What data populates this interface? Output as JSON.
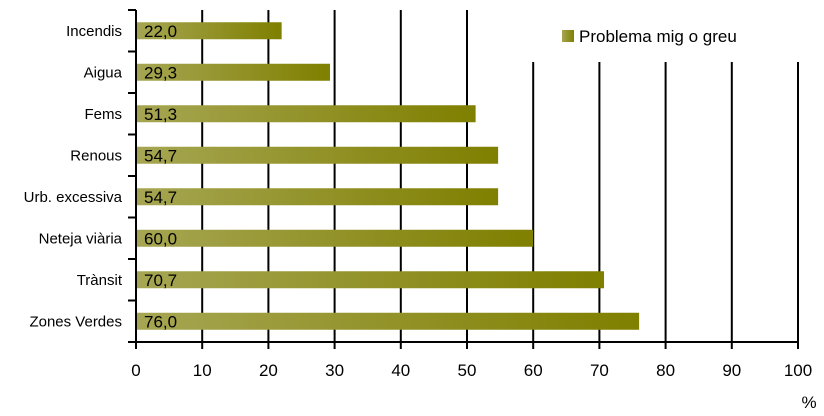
{
  "chart_data": {
    "type": "bar",
    "orientation": "horizontal",
    "categories": [
      "Incendis",
      "Aigua",
      "Fems",
      "Renous",
      "Urb. excessiva",
      "Neteja viària",
      "Trànsit",
      "Zones Verdes"
    ],
    "series": [
      {
        "name": "Problema mig o greu",
        "values": [
          22.0,
          29.3,
          51.3,
          54.7,
          54.7,
          60.0,
          70.7,
          76.0
        ],
        "value_labels": [
          "22,0",
          "29,3",
          "51,3",
          "54,7",
          "54,7",
          "60,0",
          "70,7",
          "76,0"
        ]
      }
    ],
    "xlim": [
      0,
      100
    ],
    "x_ticks": [
      0,
      10,
      20,
      30,
      40,
      50,
      60,
      70,
      80,
      90,
      100
    ],
    "x_tick_labels": [
      "0",
      "10",
      "20",
      "30",
      "40",
      "50",
      "60",
      "70",
      "80",
      "90",
      "100"
    ],
    "xlabel": "%",
    "grid": true,
    "legend": "top-right",
    "colors": {
      "bar_start": "#a6a653",
      "bar_end": "#7f7f00"
    }
  }
}
